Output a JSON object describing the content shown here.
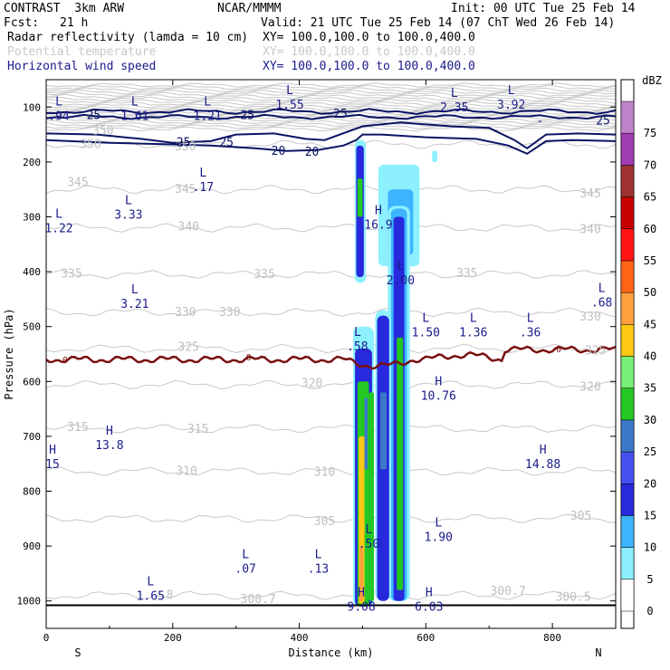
{
  "header": {
    "model": "CONTRAST  3km ARW",
    "center": "NCAR/MMMM",
    "init": "Init: 00 UTC Tue 25 Feb 14",
    "fcst_label": "Fcst:",
    "fcst_value": "21 h",
    "valid": "Valid: 21 UTC Tue 25 Feb 14 (07 ChT Wed 26 Feb 14)",
    "fields": [
      {
        "name": "Radar reflectivity (lamda = 10 cm)",
        "xy": "XY= 100.0,100.0 to 100.0,400.0",
        "color": "#000000"
      },
      {
        "name": "Potential temperature",
        "xy": "XY= 100.0,100.0 to 100.0,400.0",
        "color": "#c8c8c8"
      },
      {
        "name": "Horizontal wind speed",
        "xy": "XY= 100.0,100.0 to 100.0,400.0",
        "color": "#1a1a8c"
      }
    ]
  },
  "chart_data": {
    "type": "cross-section",
    "xlabel": "Distance (km)",
    "ylabel": "Pressure (hPa)",
    "xlim": [
      0,
      900
    ],
    "ylim": [
      1050,
      50
    ],
    "x_ticks": [
      0,
      200,
      400,
      600,
      800
    ],
    "y_ticks": [
      100,
      200,
      300,
      400,
      500,
      600,
      700,
      800,
      900,
      1000
    ],
    "x_end_labels": {
      "left": "S",
      "right": "N"
    },
    "colorbar": {
      "unit": "dBZ",
      "levels": [
        0,
        5,
        10,
        15,
        20,
        25,
        30,
        35,
        40,
        45,
        50,
        55,
        60,
        65,
        70,
        75
      ],
      "colors": [
        "#ffffff",
        "#8cf0ff",
        "#3cb4ff",
        "#2828dc",
        "#4650f0",
        "#3c78c8",
        "#23c823",
        "#78f078",
        "#ffc814",
        "#ffa03c",
        "#ff6414",
        "#ff1414",
        "#c80000",
        "#a03232",
        "#a03cb4",
        "#be82c8"
      ]
    },
    "theta_labels": [
      {
        "text": "350",
        "x": 90,
        "p": 143
      },
      {
        "text": "350",
        "x": 70,
        "p": 168
      },
      {
        "text": "350",
        "x": 220,
        "p": 172
      },
      {
        "text": "345",
        "x": 50,
        "p": 237
      },
      {
        "text": "345",
        "x": 220,
        "p": 250
      },
      {
        "text": "345",
        "x": 860,
        "p": 258
      },
      {
        "text": "340",
        "x": 225,
        "p": 318
      },
      {
        "text": "340",
        "x": 860,
        "p": 323
      },
      {
        "text": "335",
        "x": 40,
        "p": 404
      },
      {
        "text": "335",
        "x": 345,
        "p": 405
      },
      {
        "text": "335",
        "x": 665,
        "p": 403
      },
      {
        "text": "330",
        "x": 220,
        "p": 474
      },
      {
        "text": "330",
        "x": 290,
        "p": 474
      },
      {
        "text": "330",
        "x": 860,
        "p": 482
      },
      {
        "text": "325",
        "x": 225,
        "p": 538
      },
      {
        "text": "325",
        "x": 868,
        "p": 544
      },
      {
        "text": "320",
        "x": 420,
        "p": 604
      },
      {
        "text": "320",
        "x": 860,
        "p": 610
      },
      {
        "text": "315",
        "x": 50,
        "p": 684
      },
      {
        "text": "315",
        "x": 240,
        "p": 687
      },
      {
        "text": "310",
        "x": 222,
        "p": 764
      },
      {
        "text": "310",
        "x": 440,
        "p": 765
      },
      {
        "text": "305",
        "x": 440,
        "p": 855
      },
      {
        "text": "305",
        "x": 845,
        "p": 845
      },
      {
        "text": "300.7",
        "x": 335,
        "p": 997
      },
      {
        "text": "300.7",
        "x": 730,
        "p": 982
      },
      {
        "text": "300.5",
        "x": 833,
        "p": 993
      },
      {
        "text": ".8",
        "x": 190,
        "p": 990
      }
    ],
    "wind_labels": [
      {
        "text": "25",
        "x": 75,
        "p": 115
      },
      {
        "text": "25",
        "x": 318,
        "p": 115
      },
      {
        "text": "25",
        "x": 465,
        "p": 113
      },
      {
        "text": "25",
        "x": 880,
        "p": 125
      },
      {
        "text": "25",
        "x": 217,
        "p": 165
      },
      {
        "text": "25",
        "x": 285,
        "p": 165
      },
      {
        "text": "20",
        "x": 367,
        "p": 180
      },
      {
        "text": "20",
        "x": 420,
        "p": 182
      },
      {
        "text": "-",
        "x": 780,
        "p": 125
      }
    ],
    "freezing_level_label": "0",
    "extrema": [
      {
        "kind": "L",
        "value": ".94",
        "x": 20,
        "p": 100
      },
      {
        "kind": "L",
        "value": "1.61",
        "x": 140,
        "p": 100
      },
      {
        "kind": "L",
        "value": "1.21",
        "x": 255,
        "p": 100
      },
      {
        "kind": "L",
        "value": "1.55",
        "x": 385,
        "p": 80
      },
      {
        "kind": "L",
        "value": "2.35",
        "x": 645,
        "p": 85
      },
      {
        "kind": "L",
        "value": "3.92",
        "x": 735,
        "p": 80
      },
      {
        "kind": "L",
        "value": ".17",
        "x": 248,
        "p": 230
      },
      {
        "kind": "L",
        "value": "3.33",
        "x": 130,
        "p": 280
      },
      {
        "kind": "L",
        "value": "1.22",
        "x": 20,
        "p": 305
      },
      {
        "kind": "H",
        "value": "16.9",
        "x": 525,
        "p": 298
      },
      {
        "kind": "L",
        "value": "2.00",
        "x": 560,
        "p": 400
      },
      {
        "kind": "L",
        "value": "3.21",
        "x": 140,
        "p": 443
      },
      {
        "kind": "L",
        "value": ".68",
        "x": 878,
        "p": 440
      },
      {
        "kind": "L",
        "value": "1.50",
        "x": 600,
        "p": 495
      },
      {
        "kind": "L",
        "value": "1.36",
        "x": 675,
        "p": 495
      },
      {
        "kind": "L",
        "value": ".36",
        "x": 765,
        "p": 495
      },
      {
        "kind": "L",
        "value": ".58",
        "x": 492,
        "p": 520
      },
      {
        "kind": "H",
        "value": "10.76",
        "x": 620,
        "p": 610
      },
      {
        "kind": "H",
        "value": "13.8",
        "x": 100,
        "p": 700
      },
      {
        "kind": "H",
        "value": "15",
        "x": 10,
        "p": 735
      },
      {
        "kind": "H",
        "value": "14.88",
        "x": 785,
        "p": 735
      },
      {
        "kind": "L",
        "value": "1.90",
        "x": 620,
        "p": 868
      },
      {
        "kind": "L",
        "value": ".50",
        "x": 510,
        "p": 880
      },
      {
        "kind": "L",
        "value": ".07",
        "x": 315,
        "p": 925
      },
      {
        "kind": "L",
        "value": ".13",
        "x": 430,
        "p": 925
      },
      {
        "kind": "L",
        "value": "1.65",
        "x": 165,
        "p": 975
      },
      {
        "kind": "H",
        "value": "9.08",
        "x": 498,
        "p": 995
      },
      {
        "kind": "H",
        "value": "6.03",
        "x": 605,
        "p": 995
      }
    ]
  }
}
